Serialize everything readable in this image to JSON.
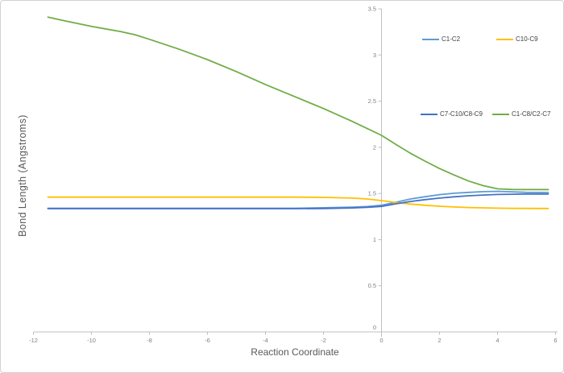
{
  "colors": {
    "background": "#ffffff",
    "border": "#d2d2d2",
    "axis_line": "#bfbfbf",
    "tick_label": "#808080",
    "axis_title": "#595959",
    "legend_text": "#404040"
  },
  "chart_data": {
    "type": "line",
    "title": "",
    "xlabel": "Reaction Coordinate",
    "ylabel": "Bond Length (Angstroms)",
    "xlim": [
      -12,
      6
    ],
    "ylim": [
      0,
      3.5
    ],
    "grid": false,
    "legend_position": "inside top-right, two rows",
    "x_ticks": [
      -12,
      -10,
      -8,
      -6,
      -4,
      -2,
      0,
      2,
      4,
      6
    ],
    "x_tick_labels": [
      "-12",
      "-10",
      "-8",
      "-6",
      "-4",
      "-2",
      "0",
      "2",
      "4",
      "6"
    ],
    "y_ticks": [
      0,
      0.5,
      1,
      1.5,
      2,
      2.5,
      3,
      3.5
    ],
    "y_tick_labels": [
      "0",
      "0.5",
      "1",
      "1.5",
      "2",
      "2.5",
      "3",
      "3.5"
    ],
    "x": [
      -11.5,
      -11,
      -10,
      -9,
      -8.5,
      -8,
      -7,
      -6,
      -5,
      -4,
      -3,
      -2,
      -1,
      -0.5,
      0,
      0.5,
      1,
      1.5,
      2,
      2.5,
      3,
      3.5,
      4,
      4.5,
      5,
      5.75
    ],
    "series": [
      {
        "name": "C1-C2",
        "color": "#5B9BD5",
        "y": [
          1.34,
          1.34,
          1.34,
          1.34,
          1.34,
          1.34,
          1.34,
          1.34,
          1.34,
          1.34,
          1.34,
          1.345,
          1.352,
          1.358,
          1.372,
          1.405,
          1.44,
          1.465,
          1.487,
          1.502,
          1.512,
          1.52,
          1.523,
          1.518,
          1.512,
          1.51
        ]
      },
      {
        "name": "C10-C9",
        "color": "#FFC000",
        "y": [
          1.46,
          1.46,
          1.46,
          1.46,
          1.46,
          1.46,
          1.46,
          1.46,
          1.46,
          1.46,
          1.46,
          1.458,
          1.45,
          1.44,
          1.423,
          1.402,
          1.385,
          1.372,
          1.362,
          1.354,
          1.348,
          1.344,
          1.341,
          1.339,
          1.338,
          1.337
        ]
      },
      {
        "name": "C7-C10/C8-C9",
        "color": "#4472C4",
        "y": [
          1.335,
          1.335,
          1.335,
          1.335,
          1.335,
          1.335,
          1.335,
          1.335,
          1.335,
          1.335,
          1.335,
          1.337,
          1.343,
          1.35,
          1.36,
          1.388,
          1.413,
          1.433,
          1.45,
          1.464,
          1.475,
          1.483,
          1.489,
          1.492,
          1.493,
          1.493
        ]
      },
      {
        "name": "C1-C8/C2-C7",
        "color": "#70AD47",
        "y": [
          3.41,
          3.375,
          3.31,
          3.255,
          3.22,
          3.17,
          3.065,
          2.95,
          2.82,
          2.68,
          2.55,
          2.42,
          2.28,
          2.205,
          2.13,
          2.03,
          1.935,
          1.85,
          1.77,
          1.7,
          1.635,
          1.585,
          1.55,
          1.543,
          1.542,
          1.542
        ]
      }
    ]
  }
}
